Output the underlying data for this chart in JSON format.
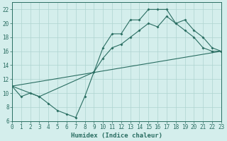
{
  "line1_x": [
    0,
    1,
    2,
    3,
    4,
    5,
    6,
    7,
    8,
    9,
    10,
    11,
    12,
    13,
    14,
    15,
    16,
    17,
    18,
    19,
    20,
    21,
    22,
    23
  ],
  "line1_y": [
    11,
    9.5,
    10,
    9.5,
    8.5,
    7.5,
    7.0,
    6.5,
    9.5,
    13,
    16.5,
    18.5,
    18.5,
    20.5,
    20.5,
    22,
    22,
    22,
    20,
    20.5,
    19,
    18,
    16.5,
    16
  ],
  "line2_x": [
    0,
    3,
    9,
    10,
    11,
    12,
    13,
    14,
    15,
    16,
    17,
    18,
    19,
    20,
    21,
    22,
    23
  ],
  "line2_y": [
    11,
    9.5,
    13,
    15,
    16.5,
    17,
    18,
    19,
    20,
    19.5,
    21,
    20,
    19,
    18,
    16.5,
    16,
    16
  ],
  "line3_x": [
    0,
    23
  ],
  "line3_y": [
    11,
    16
  ],
  "color": "#2a6e62",
  "bg_color": "#d4eeec",
  "grid_color": "#aed4d0",
  "xlabel": "Humidex (Indice chaleur)",
  "xlim": [
    0,
    23
  ],
  "ylim": [
    6,
    23
  ],
  "yticks": [
    6,
    8,
    10,
    12,
    14,
    16,
    18,
    20,
    22
  ],
  "xticks": [
    0,
    1,
    2,
    3,
    4,
    5,
    6,
    7,
    8,
    9,
    10,
    11,
    12,
    13,
    14,
    15,
    16,
    17,
    18,
    19,
    20,
    21,
    22,
    23
  ],
  "marker": "D",
  "markersize": 2.0,
  "linewidth": 0.8,
  "tick_fontsize": 5.5,
  "xlabel_fontsize": 6.5
}
